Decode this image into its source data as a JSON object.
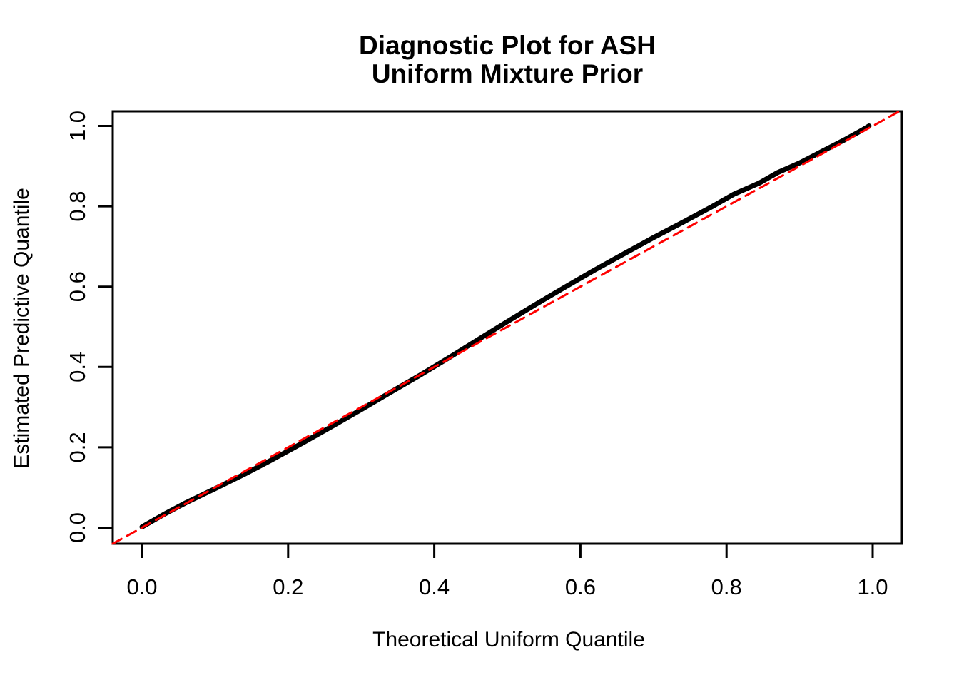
{
  "figure": {
    "title_line1": "Diagnostic Plot for ASH",
    "title_line2": "Uniform Mixture Prior",
    "xlabel": "Theoretical Uniform Quantile",
    "ylabel": "Estimated Predictive Quantile"
  },
  "colors": {
    "background": "#FFFFFF",
    "axis": "#000000",
    "curve": "#000000",
    "reference_line": "#FF0000"
  },
  "chart_data": {
    "type": "line",
    "title": "Diagnostic Plot for ASH\nUniform Mixture Prior",
    "xlabel": "Theoretical Uniform Quantile",
    "ylabel": "Estimated Predictive Quantile",
    "xlim": [
      -0.04,
      1.04
    ],
    "ylim": [
      -0.04,
      1.04
    ],
    "grid": false,
    "legend": "none",
    "xticks": {
      "values": [
        0.0,
        0.2,
        0.4,
        0.6,
        0.8,
        1.0
      ],
      "labels": [
        "0.0",
        "0.2",
        "0.4",
        "0.6",
        "0.8",
        "1.0"
      ]
    },
    "yticks": {
      "values": [
        0.0,
        0.2,
        0.4,
        0.6,
        0.8,
        1.0
      ],
      "labels": [
        "0.0",
        "0.2",
        "0.4",
        "0.6",
        "0.8",
        "1.0"
      ]
    },
    "series": [
      {
        "name": "estimated-predictive-quantile-curve",
        "type": "line",
        "color": "#000000",
        "line_width": 7,
        "dash": null,
        "points": [
          [
            0.0,
            0.002
          ],
          [
            0.03,
            0.033
          ],
          [
            0.06,
            0.062
          ],
          [
            0.1,
            0.097
          ],
          [
            0.14,
            0.133
          ],
          [
            0.18,
            0.171
          ],
          [
            0.22,
            0.211
          ],
          [
            0.26,
            0.252
          ],
          [
            0.3,
            0.294
          ],
          [
            0.34,
            0.337
          ],
          [
            0.38,
            0.379
          ],
          [
            0.42,
            0.423
          ],
          [
            0.46,
            0.468
          ],
          [
            0.5,
            0.513
          ],
          [
            0.54,
            0.557
          ],
          [
            0.58,
            0.6
          ],
          [
            0.62,
            0.642
          ],
          [
            0.66,
            0.682
          ],
          [
            0.7,
            0.722
          ],
          [
            0.74,
            0.76
          ],
          [
            0.78,
            0.799
          ],
          [
            0.81,
            0.83
          ],
          [
            0.845,
            0.858
          ],
          [
            0.87,
            0.884
          ],
          [
            0.9,
            0.908
          ],
          [
            0.93,
            0.936
          ],
          [
            0.96,
            0.964
          ],
          [
            0.985,
            0.989
          ],
          [
            0.995,
            1.0
          ]
        ]
      },
      {
        "name": "identity-reference-line",
        "type": "line",
        "color": "#FF0000",
        "line_width": 3,
        "dash": [
          14,
          9
        ],
        "points": [
          [
            -0.04,
            -0.04
          ],
          [
            1.04,
            1.04
          ]
        ]
      }
    ]
  }
}
